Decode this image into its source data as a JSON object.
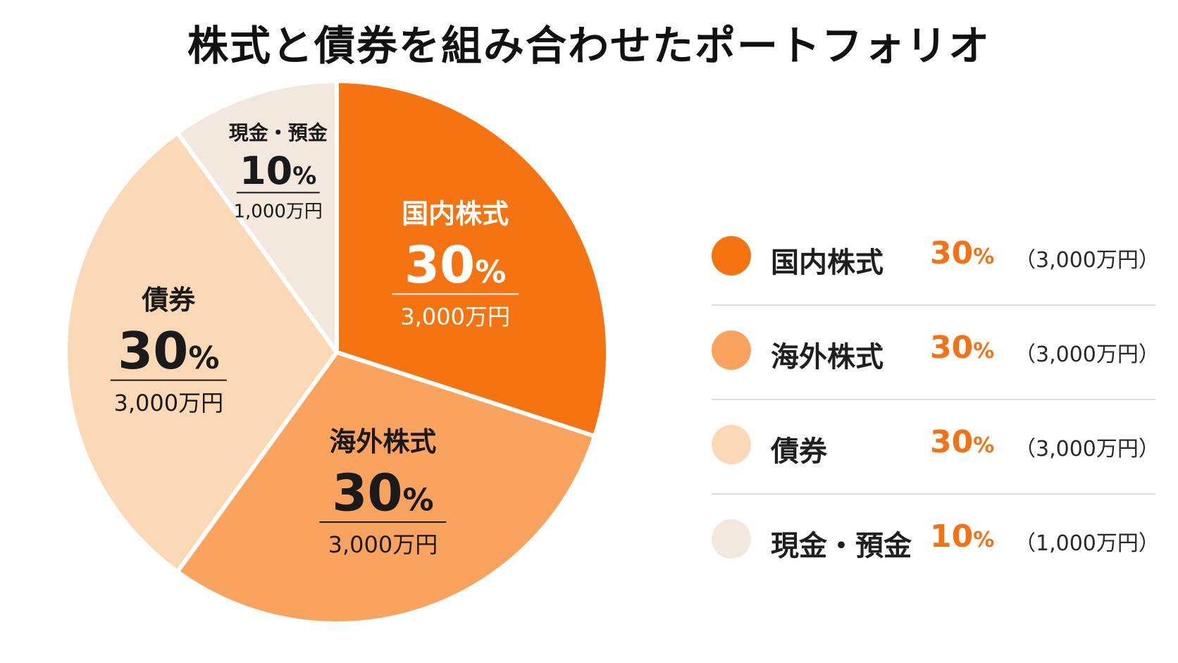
{
  "title": "株式と債券を組み合わせたポートフォリオ",
  "chart_data": {
    "type": "pie",
    "title": "株式と債券を組み合わせたポートフォリオ",
    "legend_position": "right",
    "slices": [
      {
        "name": "国内株式",
        "value": 30,
        "percent_label": "30",
        "amount": "3,000万円",
        "color": "#f57310",
        "label_color": "#ffffff"
      },
      {
        "name": "海外株式",
        "value": 30,
        "percent_label": "30",
        "amount": "3,000万円",
        "color": "#f9a35e",
        "label_color": "#1a1a1a"
      },
      {
        "name": "債券",
        "value": 30,
        "percent_label": "30",
        "amount": "3,000万円",
        "color": "#fcd9b6",
        "label_color": "#1a1a1a"
      },
      {
        "name": "現金・預金",
        "value": 10,
        "percent_label": "10",
        "amount": "1,000万円",
        "color": "#f2e8de",
        "label_color": "#1a1a1a"
      }
    ],
    "percent_sign": "%"
  },
  "legend": {
    "items": [
      {
        "name": "国内株式",
        "percent": "30",
        "amount": "（3,000万円）",
        "color": "#f57310"
      },
      {
        "name": "海外株式",
        "percent": "30",
        "amount": "（3,000万円）",
        "color": "#f9a35e"
      },
      {
        "name": "債券",
        "percent": "30",
        "amount": "（3,000万円）",
        "color": "#fcd9b6"
      },
      {
        "name": "現金・預金",
        "percent": "10",
        "amount": "（1,000万円）",
        "color": "#f2e8de"
      }
    ],
    "percent_sign": "%"
  }
}
